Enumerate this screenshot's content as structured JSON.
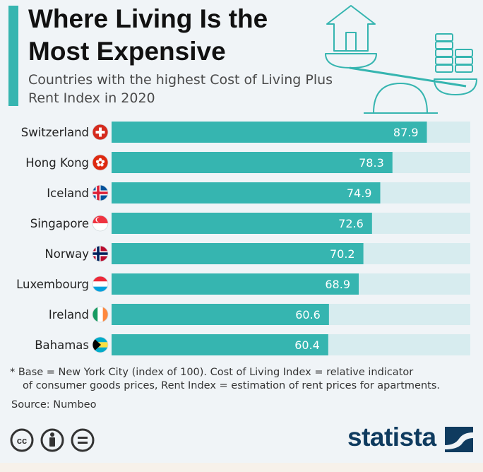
{
  "header": {
    "title": "Where Living Is the Most Expensive",
    "subtitle": "Countries with the highest Cost of Living Plus Rent Index in 2020"
  },
  "chart_data": {
    "type": "bar",
    "orientation": "horizontal",
    "categories": [
      "Switzerland",
      "Hong Kong",
      "Iceland",
      "Singapore",
      "Norway",
      "Luxembourg",
      "Ireland",
      "Bahamas"
    ],
    "values": [
      87.9,
      78.3,
      74.9,
      72.6,
      70.2,
      68.9,
      60.6,
      60.4
    ],
    "flags": [
      "switzerland-flag-icon",
      "hong-kong-flag-icon",
      "iceland-flag-icon",
      "singapore-flag-icon",
      "norway-flag-icon",
      "luxembourg-flag-icon",
      "ireland-flag-icon",
      "bahamas-flag-icon"
    ],
    "xlim": [
      0,
      100
    ],
    "bar_color": "#36b5b0",
    "track_color": "#d7ecef",
    "label_color": "#ffffff"
  },
  "footer": {
    "note_line1": "* Base = New York City (index of 100). Cost of Living Index = relative indicator",
    "note_line2": "of consumer goods prices, Rent Index = estimation of rent prices for apartments.",
    "source": "Source: Numbeo",
    "brand": "statista"
  },
  "icons": [
    "creative-commons-icon",
    "attribution-icon",
    "no-derivatives-icon",
    "house-scale-icon",
    "statista-logo-icon"
  ]
}
